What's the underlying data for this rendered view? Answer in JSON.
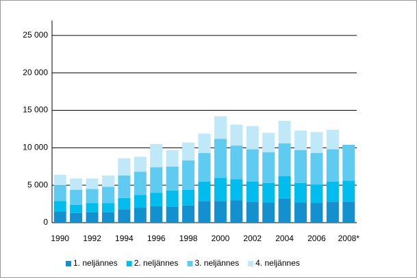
{
  "chart_data": {
    "type": "stacked_bar",
    "categories": [
      "1990",
      null,
      "1992",
      null,
      "1994",
      null,
      "1996",
      null,
      "1998",
      null,
      "2000",
      null,
      "2002",
      null,
      "2004",
      null,
      "2006",
      null,
      "2008*"
    ],
    "series": [
      {
        "name": "1. neljännes",
        "color": "#1590cf",
        "values": [
          1460,
          1300,
          1400,
          1400,
          1800,
          2000,
          2200,
          2100,
          2300,
          2900,
          2900,
          3000,
          2800,
          2700,
          3200,
          2700,
          2600,
          2800,
          2800
        ]
      },
      {
        "name": "2. neljännes",
        "color": "#00bdee",
        "values": [
          1440,
          1100,
          1200,
          1200,
          1500,
          1700,
          1800,
          2200,
          2100,
          2600,
          3100,
          2800,
          2700,
          2600,
          3000,
          2600,
          2500,
          2700,
          2800
        ]
      },
      {
        "name": "3. neljännes",
        "color": "#5fcbf1",
        "values": [
          2100,
          2000,
          1900,
          2200,
          3000,
          3100,
          3400,
          3200,
          3900,
          3800,
          5200,
          4500,
          4300,
          4100,
          4400,
          4400,
          4200,
          4300,
          4800
        ]
      },
      {
        "name": "4. neljännes",
        "color": "#bfe8f9",
        "values": [
          1400,
          1500,
          1400,
          1500,
          2300,
          2000,
          3100,
          2200,
          2400,
          2600,
          3000,
          2800,
          3100,
          2600,
          3000,
          2600,
          2800,
          2600,
          null
        ]
      }
    ],
    "ylim": [
      0,
      27000
    ],
    "yticks": [
      0,
      {
        "value": 5000,
        "label": "5 000"
      },
      {
        "value": 10000,
        "label": "10 000"
      },
      {
        "value": 15000,
        "label": "15 000"
      },
      {
        "value": 20000,
        "label": "20 000"
      },
      {
        "value": 25000,
        "label": "25 000"
      }
    ],
    "grid": true,
    "legend": "bottom"
  }
}
